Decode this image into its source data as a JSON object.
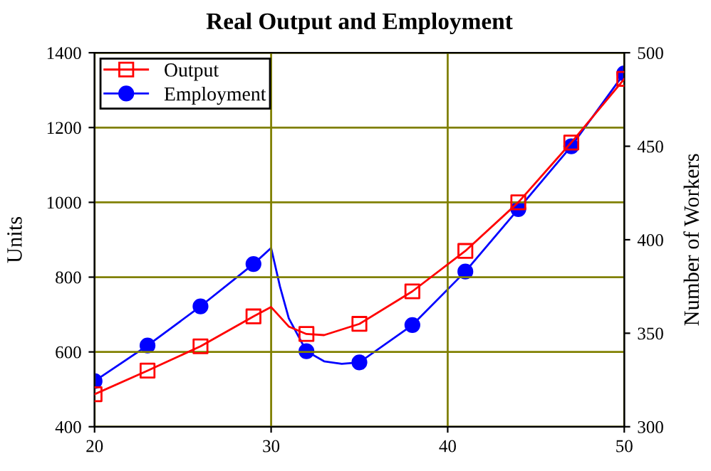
{
  "chart_data": {
    "type": "line",
    "title": "Real Output and Employment",
    "ylabel": "Units",
    "y2label": "Number of Workers",
    "xlim": [
      20,
      50
    ],
    "xticks": [
      20,
      30,
      40,
      50
    ],
    "ylim": [
      400,
      1400
    ],
    "yticks": [
      400,
      600,
      800,
      1000,
      1200,
      1400
    ],
    "y2lim": [
      300,
      500
    ],
    "y2ticks": [
      300,
      350,
      400,
      450,
      500
    ],
    "grid": true,
    "legend": "top left",
    "series": [
      {
        "color": "#ff0000",
        "marker": "none",
        "x": [
          20,
          23,
          26,
          29,
          30,
          31,
          32,
          33,
          35,
          38,
          41,
          44,
          47,
          50
        ],
        "values": [
          487,
          550,
          615,
          695,
          720,
          668,
          648,
          645,
          675,
          762,
          870,
          1000,
          1160,
          1330
        ]
      },
      {
        "type": "scatter",
        "name": "Output",
        "color": "#ff0000",
        "marker": "square",
        "x": [
          20,
          23,
          26,
          29,
          32,
          35,
          38,
          41,
          44,
          47,
          50
        ],
        "values": [
          487,
          550,
          615,
          695,
          648,
          675,
          762,
          870,
          1000,
          1160,
          1330
        ]
      },
      {
        "axis": "y2",
        "color": "#0000ff",
        "marker": "none",
        "x": [
          20,
          23,
          26,
          29,
          30,
          30.5,
          31,
          32,
          33,
          34,
          35,
          38,
          41,
          44,
          47,
          50
        ],
        "values": [
          324.4,
          343.4,
          364.4,
          387,
          395.6,
          375,
          358,
          340.4,
          335,
          333.6,
          334.4,
          354.4,
          383,
          416.4,
          450,
          489
        ]
      },
      {
        "type": "scatter",
        "axis": "y2",
        "name": "Employment",
        "color": "#0000ff",
        "marker": "circle",
        "x": [
          20,
          23,
          26,
          29,
          32,
          35,
          38,
          41,
          44,
          47,
          50
        ],
        "values": [
          324.4,
          343.4,
          364.4,
          387,
          340.4,
          334.4,
          354.4,
          383,
          416.4,
          450,
          489
        ]
      }
    ]
  }
}
